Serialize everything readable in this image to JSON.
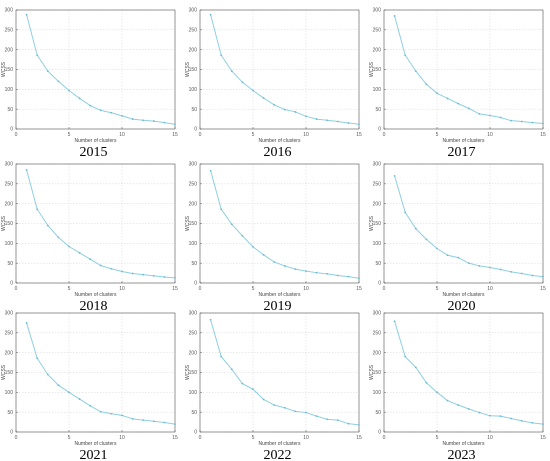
{
  "chart_data": [
    {
      "type": "line",
      "title": "2015",
      "xlabel": "Number of clusters",
      "ylabel": "WCSS",
      "xlim": [
        0,
        15
      ],
      "ylim": [
        0,
        300
      ],
      "xticks": [
        "0",
        "5",
        "10",
        "15"
      ],
      "yticks": [
        "0",
        "50",
        "100",
        "150",
        "200",
        "250",
        "300"
      ],
      "grid": true,
      "x": [
        1,
        2,
        3,
        4,
        5,
        6,
        7,
        8,
        9,
        10,
        11,
        12,
        13,
        14,
        15
      ],
      "values": [
        288,
        186,
        146,
        120,
        97,
        77,
        59,
        47,
        41,
        33,
        25,
        22,
        20,
        16,
        12
      ]
    },
    {
      "type": "line",
      "title": "2016",
      "xlabel": "Number of clusters",
      "ylabel": "WCSS",
      "xlim": [
        0,
        15
      ],
      "ylim": [
        0,
        300
      ],
      "xticks": [
        "0",
        "5",
        "10",
        "15"
      ],
      "yticks": [
        "0",
        "50",
        "100",
        "150",
        "200",
        "250",
        "300"
      ],
      "grid": true,
      "x": [
        1,
        2,
        3,
        4,
        5,
        6,
        7,
        8,
        9,
        10,
        11,
        12,
        13,
        14,
        15
      ],
      "values": [
        288,
        186,
        146,
        118,
        97,
        78,
        61,
        49,
        43,
        32,
        25,
        22,
        19,
        15,
        12
      ]
    },
    {
      "type": "line",
      "title": "2017",
      "xlabel": "Number of clusters",
      "ylabel": "WCSS",
      "xlim": [
        0,
        15
      ],
      "ylim": [
        0,
        300
      ],
      "xticks": [
        "0",
        "5",
        "10",
        "15"
      ],
      "yticks": [
        "0",
        "50",
        "100",
        "150",
        "200",
        "250",
        "300"
      ],
      "grid": true,
      "x": [
        1,
        2,
        3,
        4,
        5,
        6,
        7,
        8,
        9,
        10,
        11,
        12,
        13,
        14,
        15
      ],
      "values": [
        285,
        186,
        146,
        113,
        90,
        77,
        64,
        52,
        38,
        34,
        29,
        21,
        19,
        16,
        14
      ]
    },
    {
      "type": "line",
      "title": "2018",
      "xlabel": "Number of clusters",
      "ylabel": "WCSS",
      "xlim": [
        0,
        15
      ],
      "ylim": [
        0,
        300
      ],
      "xticks": [
        "0",
        "5",
        "10",
        "15"
      ],
      "yticks": [
        "0",
        "50",
        "100",
        "150",
        "200",
        "250",
        "300"
      ],
      "grid": true,
      "x": [
        1,
        2,
        3,
        4,
        5,
        6,
        7,
        8,
        9,
        10,
        11,
        12,
        13,
        14,
        15
      ],
      "values": [
        285,
        186,
        145,
        115,
        92,
        76,
        60,
        44,
        36,
        29,
        24,
        21,
        18,
        15,
        13
      ]
    },
    {
      "type": "line",
      "title": "2019",
      "xlabel": "Number of clusters",
      "ylabel": "WCSS",
      "xlim": [
        0,
        15
      ],
      "ylim": [
        0,
        300
      ],
      "xticks": [
        "0",
        "5",
        "10",
        "15"
      ],
      "yticks": [
        "0",
        "50",
        "100",
        "150",
        "200",
        "250",
        "300"
      ],
      "grid": true,
      "x": [
        1,
        2,
        3,
        4,
        5,
        6,
        7,
        8,
        9,
        10,
        11,
        12,
        13,
        14,
        15
      ],
      "values": [
        283,
        186,
        148,
        119,
        91,
        71,
        53,
        43,
        35,
        30,
        26,
        23,
        19,
        16,
        12
      ]
    },
    {
      "type": "line",
      "title": "2020",
      "xlabel": "Number of clusters",
      "ylabel": "WCSS",
      "xlim": [
        0,
        15
      ],
      "ylim": [
        0,
        300
      ],
      "xticks": [
        "0",
        "5",
        "10",
        "15"
      ],
      "yticks": [
        "0",
        "50",
        "100",
        "150",
        "200",
        "250",
        "300"
      ],
      "grid": true,
      "x": [
        1,
        2,
        3,
        4,
        5,
        6,
        7,
        8,
        9,
        10,
        11,
        12,
        13,
        14,
        15
      ],
      "values": [
        270,
        178,
        137,
        110,
        87,
        70,
        64,
        50,
        43,
        39,
        34,
        28,
        24,
        19,
        16
      ]
    },
    {
      "type": "line",
      "title": "2021",
      "xlabel": "Number of clusters",
      "ylabel": "WCSS",
      "xlim": [
        0,
        15
      ],
      "ylim": [
        0,
        300
      ],
      "xticks": [
        "0",
        "5",
        "10",
        "15"
      ],
      "yticks": [
        "0",
        "50",
        "100",
        "150",
        "200",
        "250",
        "300"
      ],
      "grid": true,
      "x": [
        1,
        2,
        3,
        4,
        5,
        6,
        7,
        8,
        9,
        10,
        11,
        12,
        13,
        14,
        15
      ],
      "values": [
        275,
        186,
        145,
        118,
        100,
        83,
        66,
        51,
        46,
        42,
        33,
        30,
        27,
        24,
        20
      ]
    },
    {
      "type": "line",
      "title": "2022",
      "xlabel": "Number of clusters",
      "ylabel": "WCSS",
      "xlim": [
        0,
        15
      ],
      "ylim": [
        0,
        300
      ],
      "xticks": [
        "0",
        "5",
        "10",
        "15"
      ],
      "yticks": [
        "0",
        "50",
        "100",
        "150",
        "200",
        "250",
        "300"
      ],
      "grid": true,
      "x": [
        1,
        2,
        3,
        4,
        5,
        6,
        7,
        8,
        9,
        10,
        11,
        12,
        13,
        14,
        15
      ],
      "values": [
        283,
        190,
        158,
        122,
        108,
        82,
        68,
        61,
        52,
        49,
        40,
        32,
        30,
        21,
        18
      ]
    },
    {
      "type": "line",
      "title": "2023",
      "xlabel": "Number of clusters",
      "ylabel": "WCSS",
      "xlim": [
        0,
        15
      ],
      "ylim": [
        0,
        300
      ],
      "xticks": [
        "0",
        "5",
        "10",
        "15"
      ],
      "yticks": [
        "0",
        "50",
        "100",
        "150",
        "200",
        "250",
        "300"
      ],
      "grid": true,
      "x": [
        1,
        2,
        3,
        4,
        5,
        6,
        7,
        8,
        9,
        10,
        11,
        12,
        13,
        14,
        15
      ],
      "values": [
        279,
        190,
        163,
        124,
        100,
        79,
        68,
        58,
        49,
        41,
        40,
        34,
        28,
        23,
        20
      ]
    }
  ],
  "colors": {
    "line": "#8ecfe0",
    "marker": "#6fb8cf",
    "grid": "#d4d4d4",
    "axis": "#555555"
  }
}
